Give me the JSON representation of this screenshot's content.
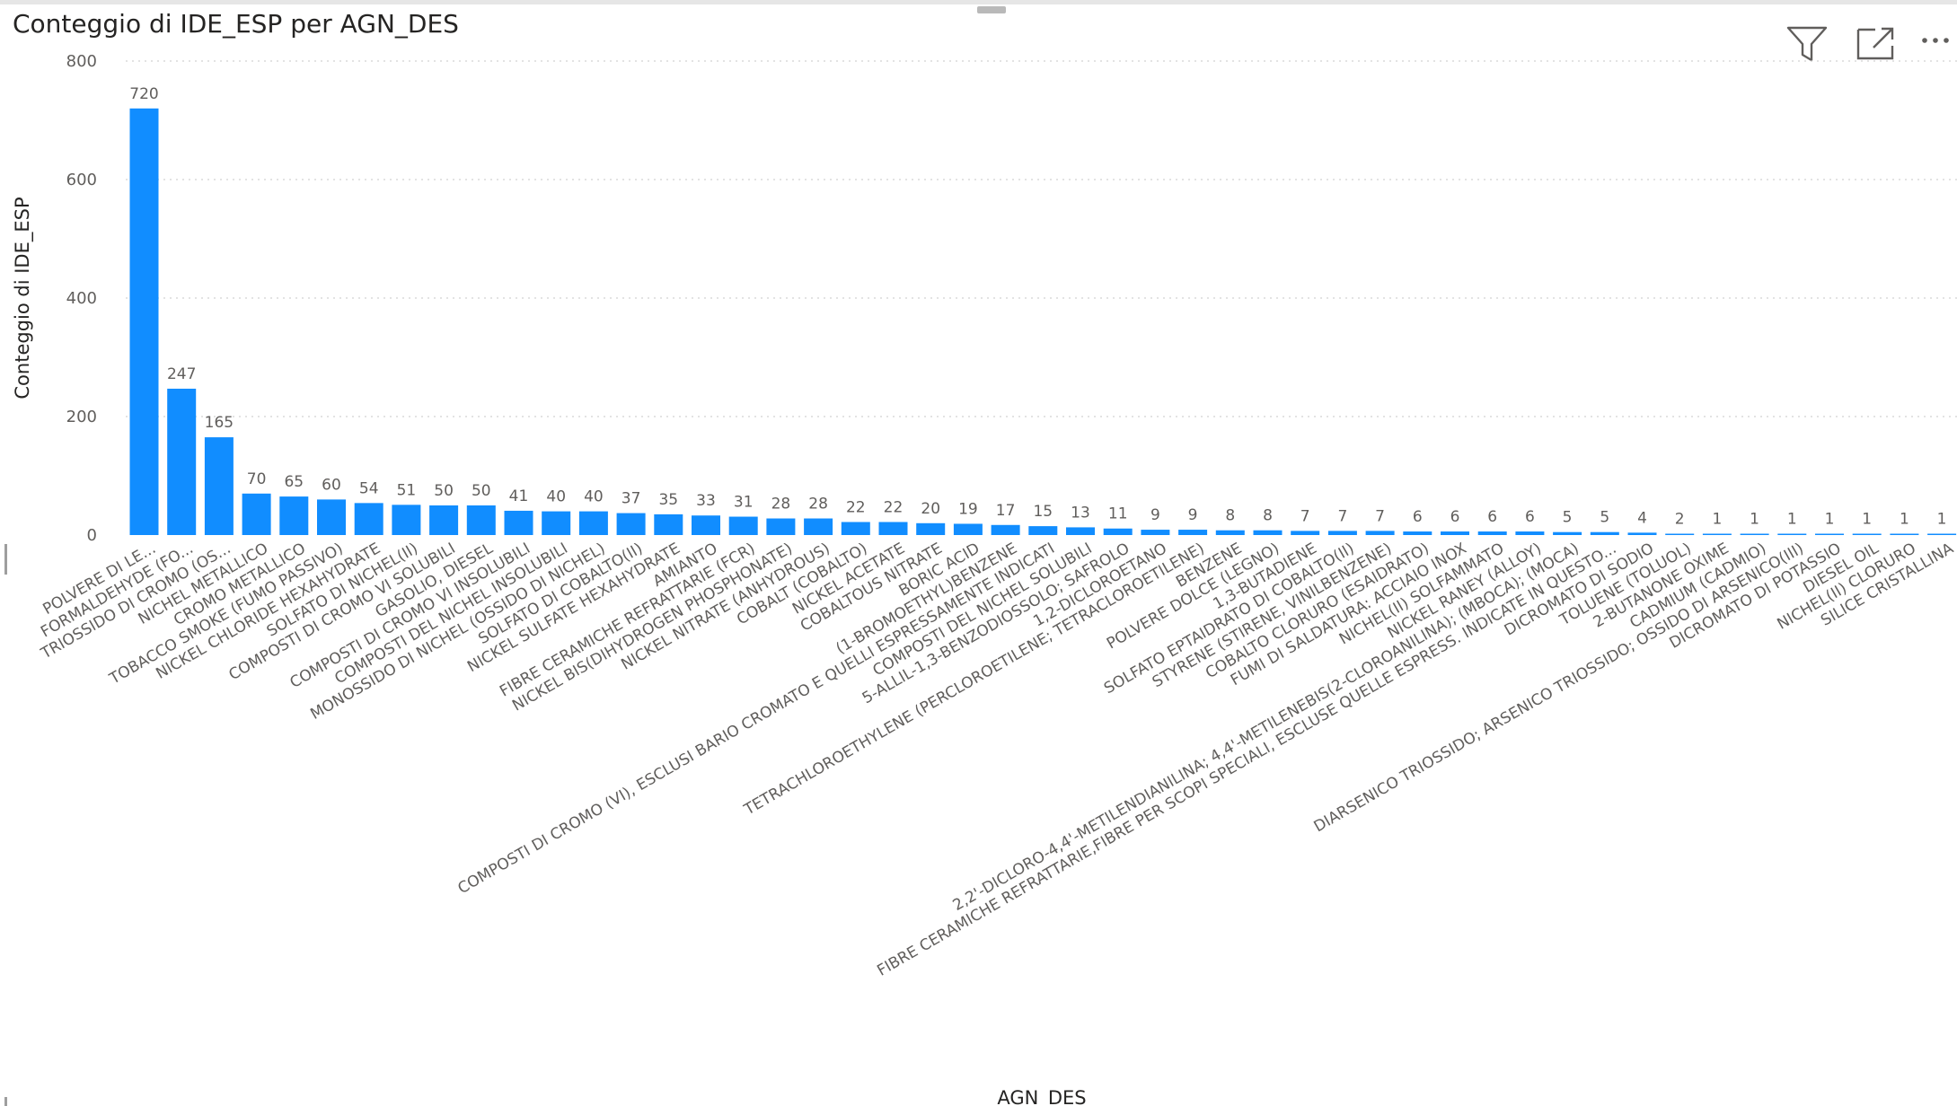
{
  "visual": {
    "title": "Conteggio di IDE_ESP per AGN_DES",
    "icons": [
      "filter-icon",
      "focus-mode-icon",
      "more-options-icon"
    ]
  },
  "chart_data": {
    "type": "bar",
    "title": "Conteggio di IDE_ESP per AGN_DES",
    "xlabel": "AGN_DES",
    "ylabel": "Conteggio di IDE_ESP",
    "ylim": [
      0,
      800
    ],
    "yticks": [
      0,
      200,
      400,
      600,
      800
    ],
    "grid": true,
    "bar_color": "#118dff",
    "categories": [
      "POLVERE DI LE...",
      "FORMALDEHYDE (FO...",
      "TRIOSSIDO DI CROMO (OS...",
      "NICHEL METALLICO",
      "CROMO METALLICO",
      "TOBACCO SMOKE (FUMO PASSIVO)",
      "NICKEL CHLORIDE HEXAHYDRATE",
      "SOLFATO DI NICHEL(II)",
      "COMPOSTI DI CROMO VI SOLUBILI",
      "GASOLIO, DIESEL",
      "COMPOSTI DI CROMO VI INSOLUBILI",
      "COMPOSTI DEL NICHEL INSOLUBILI",
      "MONOSSIDO DI NICHEL (OSSIDO DI NICHEL)",
      "SOLFATO DI COBALTO(II)",
      "NICKEL SULFATE HEXAHYDRATE",
      "AMIANTO",
      "FIBRE CERAMICHE REFRATTARIE (FCR)",
      "NICKEL BIS(DIHYDROGEN PHOSPHONATE)",
      "NICKEL NITRATE (ANHYDROUS)",
      "COBALT (COBALTO)",
      "NICKEL ACETATE",
      "COBALTOUS NITRATE",
      "BORIC ACID",
      "(1-BROMOETHYL)BENZENE",
      "COMPOSTI DI CROMO (VI), ESCLUSI BARIO CROMATO E QUELLI ESPRESSAMENTE INDICATI",
      "COMPOSTI DEL NICHEL SOLUBILI",
      "5-ALLIL-1,3-BENZODIOSSOLO; SAFROLO",
      "1,2-DICLOROETANO",
      "TETRACHLOROETHYLENE (PERCLOROETILENE; TETRACLOROETILENE)",
      "BENZENE",
      "POLVERE DOLCE (LEGNO)",
      "1,3-BUTADIENE",
      "SOLFATO EPTAIDRATO DI COBALTO(II)",
      "STYRENE (STIRENE, VINILBENZENE)",
      "COBALTO CLORURO (ESAIDRATO)",
      "FUMI DI SALDATURA: ACCIAIO INOX",
      "NICHEL(II) SOLFAMMATO",
      "NICKEL RANEY (ALLOY)",
      "2,2'-DICLORO-4,4'-METILENDIANILINA; 4,4'-METILENEBIS(2-CLOROANILINA); (MBOCA); (MOCA)",
      "FIBRE CERAMICHE REFRATTARIE,FIBRE PER SCOPI SPECIALI, ESCLUSE QUELLE ESPRESS. INDICATE IN QUESTO...",
      "DICROMATO DI SODIO",
      "TOLUENE (TOLUOL)",
      "2-BUTANONE OXIME",
      "CADMIUM (CADMIO)",
      "DIARSENICO TRIOSSIDO; ARSENICO TRIOSSIDO; OSSIDO DI ARSENICO(III)",
      "DICROMATO DI POTASSIO",
      "DIESEL OIL",
      "NICHEL(II) CLORURO",
      "SILICE CRISTALLINA"
    ],
    "values": [
      720,
      247,
      165,
      70,
      65,
      60,
      54,
      51,
      50,
      50,
      41,
      40,
      40,
      37,
      35,
      33,
      31,
      28,
      28,
      22,
      22,
      20,
      19,
      17,
      15,
      13,
      11,
      9,
      9,
      8,
      8,
      7,
      7,
      7,
      6,
      6,
      6,
      6,
      5,
      5,
      4,
      2,
      1,
      1,
      1,
      1,
      1,
      1,
      1
    ]
  }
}
